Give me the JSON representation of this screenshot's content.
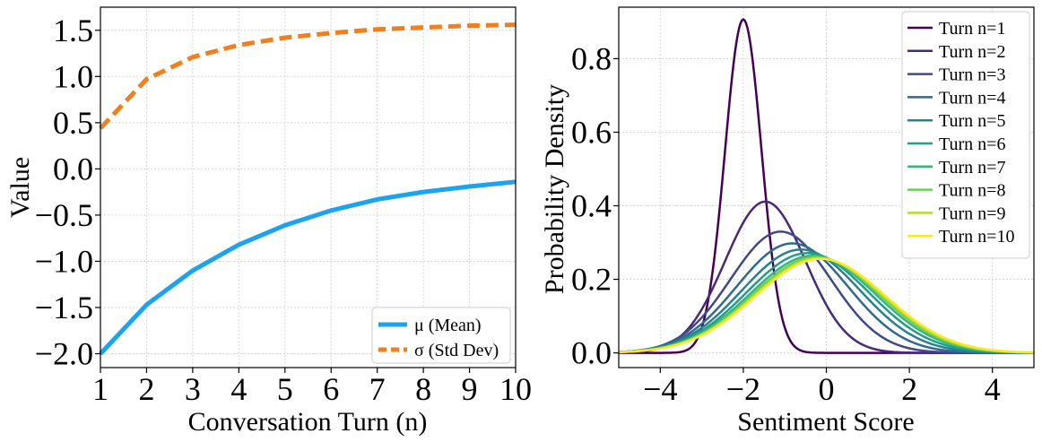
{
  "chart_data": [
    {
      "type": "line",
      "xlabel": "Conversation Turn (n)",
      "ylabel": "Value",
      "xlim": [
        1,
        10
      ],
      "ylim": [
        -2.15,
        1.75
      ],
      "xticks": [
        "1",
        "2",
        "3",
        "4",
        "5",
        "6",
        "7",
        "8",
        "9",
        "10"
      ],
      "yticks": [
        "1.5",
        "1.0",
        "0.5",
        "0.0",
        "−0.5",
        "−1.0",
        "−1.5",
        "−2.0"
      ],
      "x": [
        1,
        2,
        3,
        4,
        5,
        6,
        7,
        8,
        9,
        10
      ],
      "series": [
        {
          "name": "μ (Mean)",
          "color": "#1aa3ee",
          "style": "solid",
          "values": [
            -2.0,
            -1.47,
            -1.1,
            -0.82,
            -0.61,
            -0.45,
            -0.33,
            -0.25,
            -0.19,
            -0.14
          ]
        },
        {
          "name": "σ (Std Dev)",
          "color": "#f07f1e",
          "style": "dashed",
          "values": [
            0.44,
            0.97,
            1.21,
            1.34,
            1.42,
            1.47,
            1.51,
            1.53,
            1.55,
            1.56
          ]
        }
      ],
      "legend": "lower-right",
      "grid": true
    },
    {
      "type": "line",
      "xlabel": "Sentiment Score",
      "ylabel": "Probability Density",
      "xlim": [
        -5,
        5
      ],
      "ylim": [
        -0.04,
        0.94
      ],
      "xticks": [
        "−4",
        "−2",
        "0",
        "2",
        "4"
      ],
      "yticks": [
        "0.8",
        "0.6",
        "0.4",
        "0.2",
        "0.0"
      ],
      "curve": "normal-density",
      "series": [
        {
          "name": "Turn n=1",
          "mean": -2.0,
          "sd": 0.44,
          "color": "#440154"
        },
        {
          "name": "Turn n=2",
          "mean": -1.47,
          "sd": 0.97,
          "color": "#482878"
        },
        {
          "name": "Turn n=3",
          "mean": -1.1,
          "sd": 1.21,
          "color": "#3e4989"
        },
        {
          "name": "Turn n=4",
          "mean": -0.82,
          "sd": 1.34,
          "color": "#31688e"
        },
        {
          "name": "Turn n=5",
          "mean": -0.61,
          "sd": 1.42,
          "color": "#26828e"
        },
        {
          "name": "Turn n=6",
          "mean": -0.45,
          "sd": 1.47,
          "color": "#1f9e89"
        },
        {
          "name": "Turn n=7",
          "mean": -0.33,
          "sd": 1.51,
          "color": "#35b779"
        },
        {
          "name": "Turn n=8",
          "mean": -0.25,
          "sd": 1.53,
          "color": "#6ece58"
        },
        {
          "name": "Turn n=9",
          "mean": -0.19,
          "sd": 1.55,
          "color": "#b5de2b"
        },
        {
          "name": "Turn n=10",
          "mean": -0.14,
          "sd": 1.56,
          "color": "#fde725"
        }
      ],
      "legend": "upper-right",
      "grid": true
    }
  ]
}
